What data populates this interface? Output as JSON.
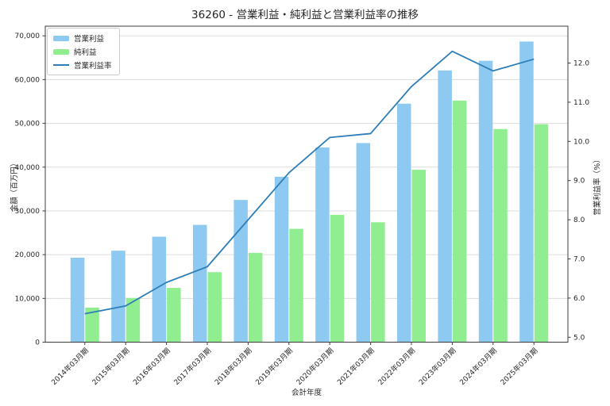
{
  "page": {
    "title": "36260 - 営業利益・純利益と営業利益率の推移"
  },
  "chart_data": {
    "type": "bar",
    "title": "36260 - 営業利益・純利益と営業利益率の推移",
    "categories": [
      "2014年03月期",
      "2015年03月期",
      "2016年03月期",
      "2017年03月期",
      "2018年03月期",
      "2019年03月期",
      "2020年03月期",
      "2021年03月期",
      "2022年03月期",
      "2023年03月期",
      "2024年03月期",
      "2025年03月期"
    ],
    "series": [
      {
        "name": "営業利益",
        "type": "bar",
        "axis": "left",
        "color": "#8ec9f2",
        "values": [
          19300,
          20900,
          24100,
          26800,
          32500,
          37800,
          44500,
          45500,
          54500,
          62100,
          64300,
          68700
        ]
      },
      {
        "name": "純利益",
        "type": "bar",
        "axis": "left",
        "color": "#90ee90",
        "values": [
          7900,
          10100,
          12400,
          16000,
          20400,
          25900,
          29100,
          27400,
          39400,
          55200,
          48700,
          49800
        ]
      },
      {
        "name": "営業利益率",
        "type": "line",
        "axis": "right",
        "color": "#2e7eb8",
        "values": [
          5.6,
          5.8,
          6.4,
          6.8,
          8.0,
          9.2,
          10.1,
          10.2,
          11.4,
          12.3,
          11.8,
          12.1
        ]
      }
    ],
    "xlabel": "会計年度",
    "ylabel_left": "金額（百万円）",
    "ylabel_right": "営業利益率（%）",
    "left_axis": {
      "min": 0,
      "max": 70000,
      "tick_values": [
        0,
        10000,
        20000,
        30000,
        40000,
        50000,
        60000,
        70000
      ],
      "tick_labels": [
        "0",
        "10,000",
        "20,000",
        "30,000",
        "40,000",
        "50,000",
        "60,000",
        "70,000"
      ]
    },
    "right_axis": {
      "tick_values": [
        5,
        6,
        7,
        8,
        9,
        10,
        11,
        12
      ],
      "tick_labels": [
        "5.0",
        "6.0",
        "7.0",
        "8.0",
        "9.0",
        "10.0",
        "11.0",
        "12.0"
      ]
    },
    "legend_position": "upper left",
    "grid": true
  },
  "colors": {
    "grid": "#dcdcdc",
    "spine": "#3c3c3c",
    "tick_text": "#262626",
    "background": "#ffffff"
  }
}
